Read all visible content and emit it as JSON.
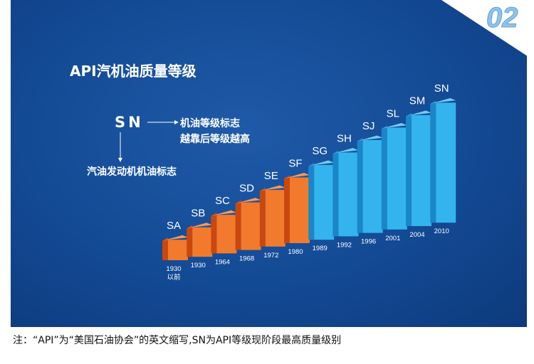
{
  "badge": "02",
  "title": "API汽机油质量等级",
  "legend": {
    "code": "SN",
    "note1": "机油等级标志",
    "note2": "越靠后等级越高",
    "note3": "汽油发动机机油标志"
  },
  "caption": "注：“API”为“美国石油协会”的英文缩写,SN为API等级现阶段最高质量级别",
  "colors": {
    "old": "#e8601c",
    "new": "#2aa8e8",
    "background": "#134a94"
  },
  "chart_data": {
    "type": "bar",
    "title": "API汽机油质量等级",
    "categories": [
      "SA",
      "SB",
      "SC",
      "SD",
      "SE",
      "SF",
      "SG",
      "SH",
      "SJ",
      "SL",
      "SM",
      "SN"
    ],
    "years": [
      "1930\n以前",
      "1930",
      "1964",
      "1968",
      "1972",
      "1980",
      "1989",
      "1992",
      "1996",
      "2001",
      "2004",
      "2010"
    ],
    "values": [
      1,
      2,
      3,
      4,
      5,
      6,
      7,
      8,
      9,
      10,
      11,
      12
    ],
    "series_colors": [
      "old",
      "old",
      "old",
      "old",
      "old",
      "old",
      "new",
      "new",
      "new",
      "new",
      "new",
      "new"
    ]
  }
}
